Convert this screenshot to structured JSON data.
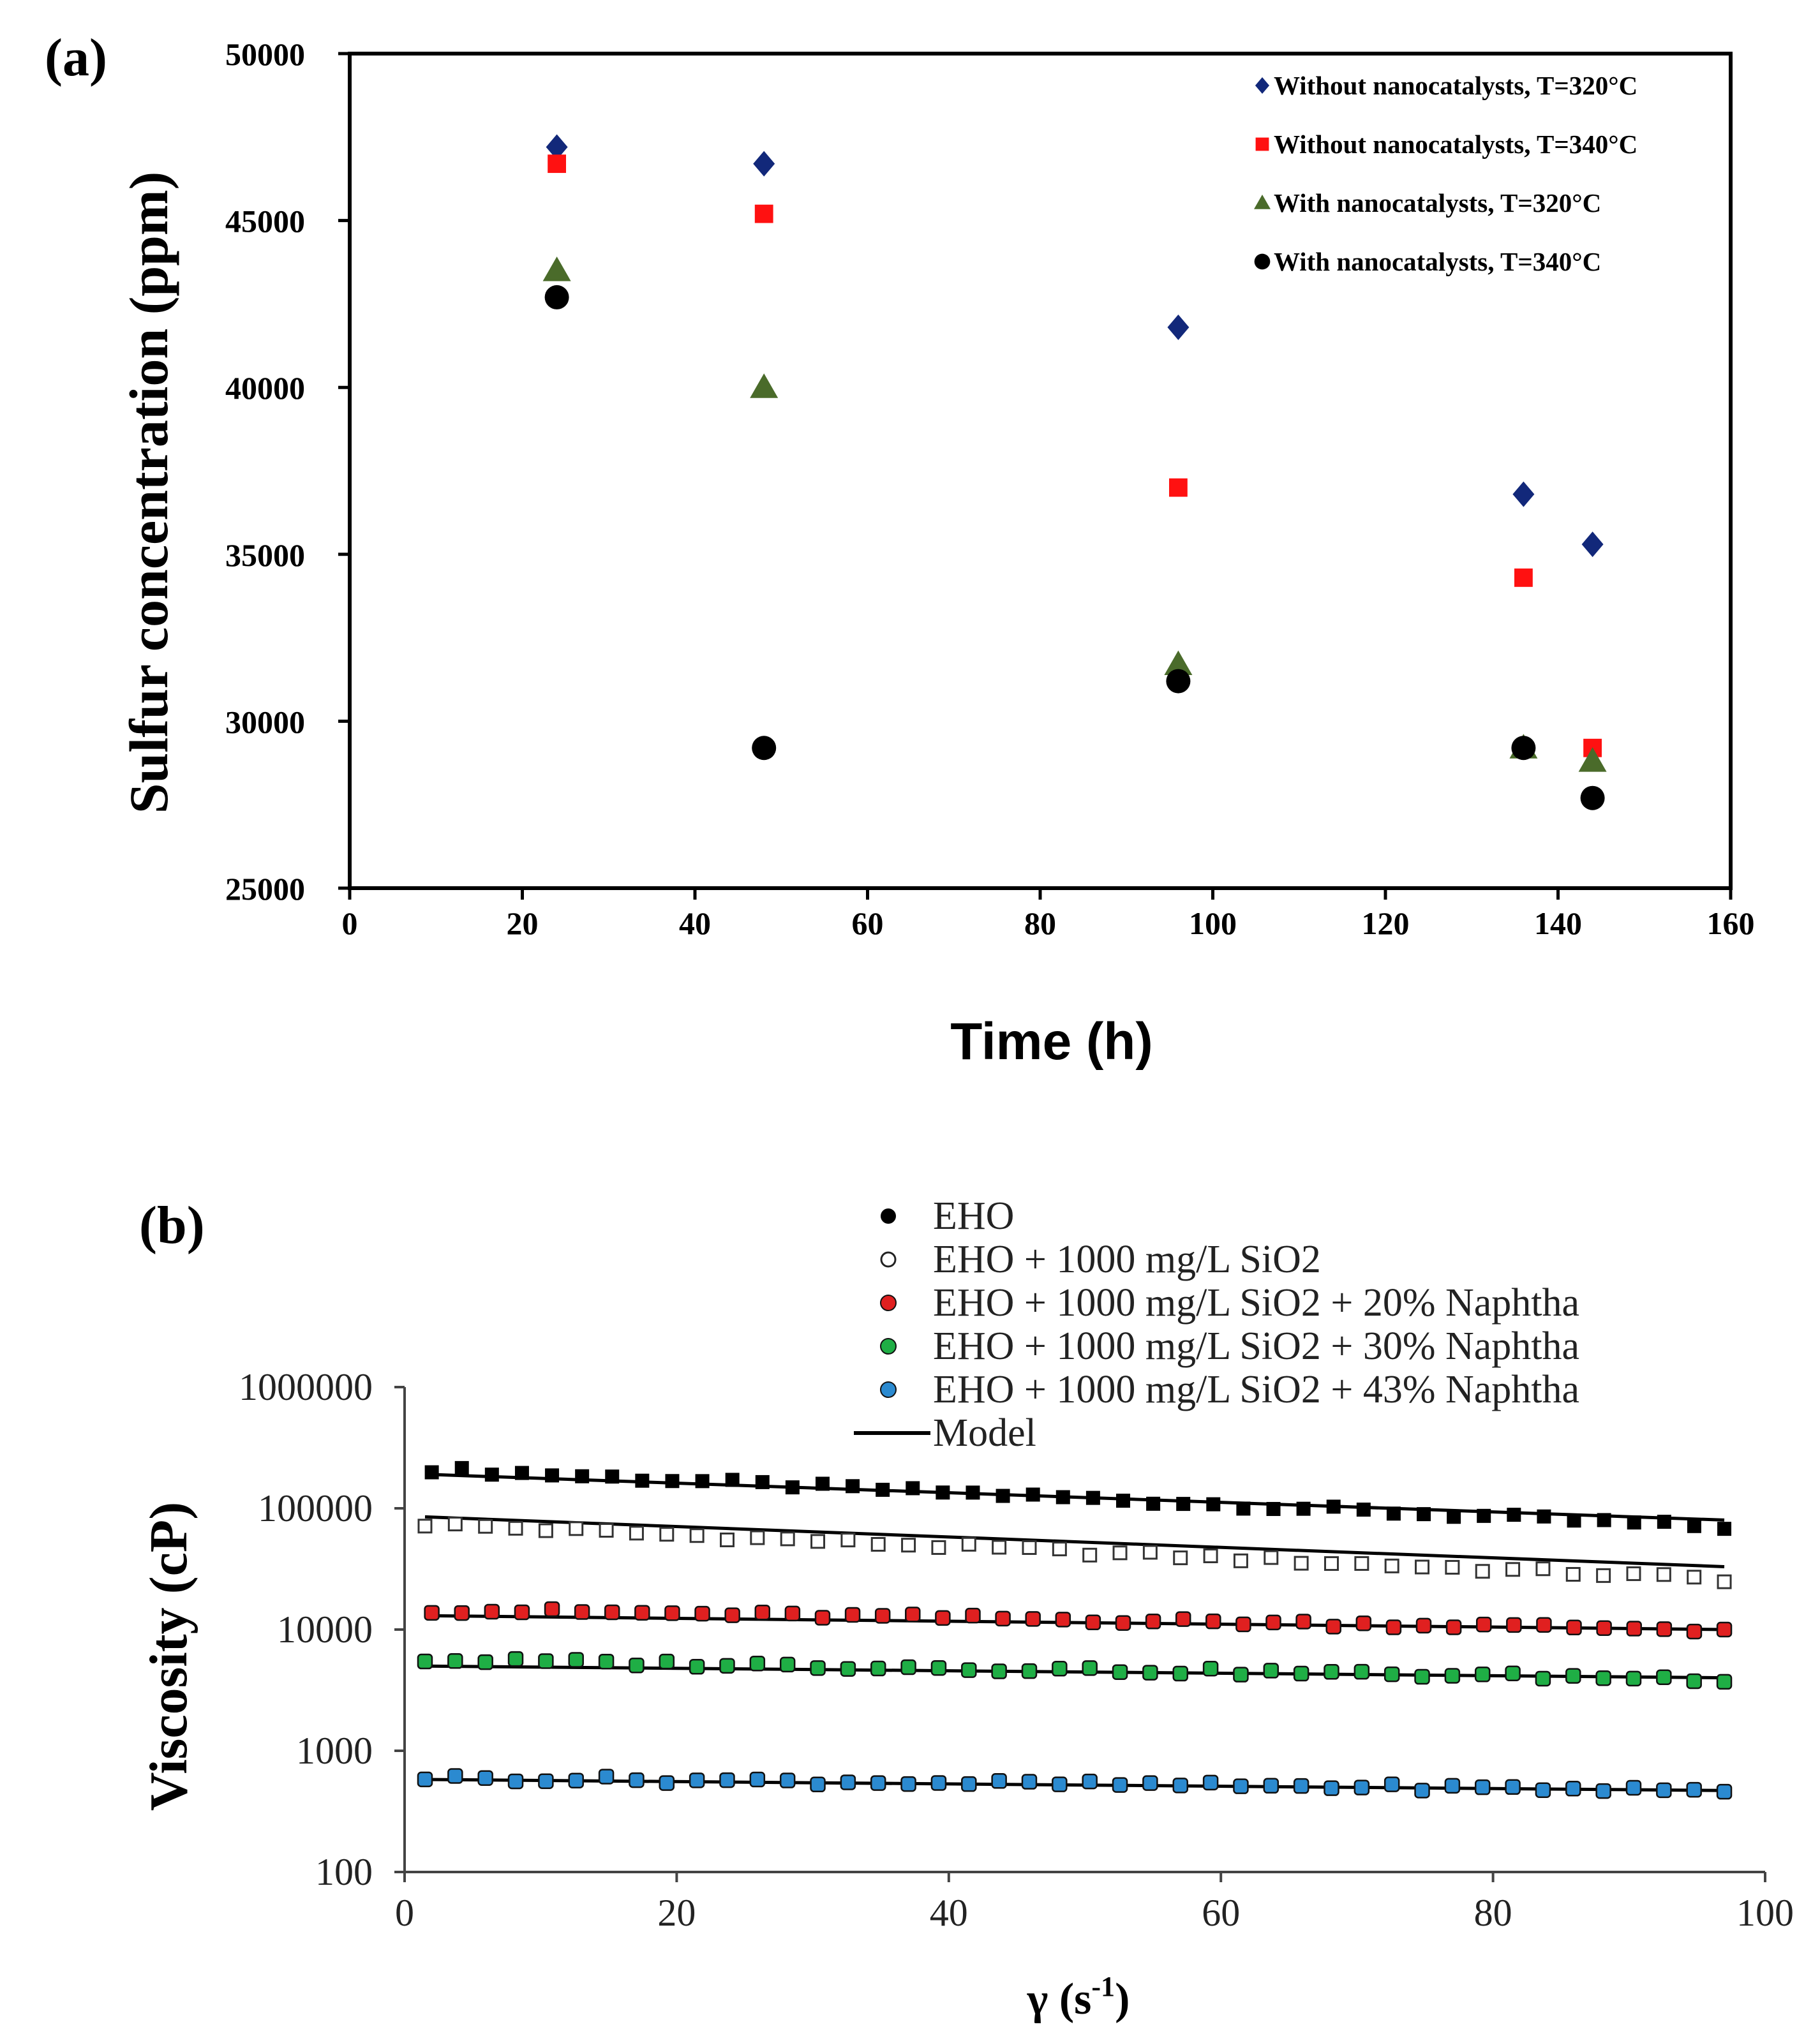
{
  "chart_data": [
    {
      "panel": "(a)",
      "type": "scatter",
      "xlabel": "Time (h)",
      "ylabel": "Sulfur concentration (ppm)",
      "xlim": [
        0,
        160
      ],
      "ylim": [
        25000,
        50000
      ],
      "xticks": [
        0,
        20,
        40,
        60,
        80,
        100,
        120,
        140,
        160
      ],
      "yticks": [
        25000,
        30000,
        35000,
        40000,
        45000,
        50000
      ],
      "legend_position": "top-right",
      "series": [
        {
          "name": "Without nanocatalysts, T=320°C",
          "marker": "diamond",
          "color": "#12287a",
          "x": [
            24,
            48,
            96,
            136,
            144
          ],
          "y": [
            47200,
            46700,
            41800,
            36800,
            35300
          ]
        },
        {
          "name": "Without nanocatalysts, T=340°C",
          "marker": "square",
          "color": "#ff1111",
          "x": [
            24,
            48,
            96,
            136,
            144
          ],
          "y": [
            46700,
            45200,
            37000,
            34300,
            29200
          ]
        },
        {
          "name": "With nanocatalysts, T=320°C",
          "marker": "triangle",
          "color": "#4a6b2a",
          "x": [
            24,
            48,
            96,
            136,
            144
          ],
          "y": [
            43500,
            40000,
            31700,
            29200,
            28800
          ]
        },
        {
          "name": "With nanocatalysts, T=340°C",
          "marker": "circle",
          "color": "#000000",
          "x": [
            24,
            48,
            96,
            136,
            144
          ],
          "y": [
            42700,
            29200,
            31200,
            29200,
            27700
          ]
        }
      ]
    },
    {
      "panel": "(b)",
      "type": "scatter",
      "yscale": "log",
      "xlabel": "γ (s",
      "xlabel_sup": "-1",
      "xlabel_end": ")",
      "ylabel": "Viscosity (cP)",
      "xlim": [
        0,
        100
      ],
      "ylim": [
        100,
        1000000
      ],
      "xticks": [
        0,
        20,
        40,
        60,
        80,
        100
      ],
      "yticks": [
        100,
        1000,
        10000,
        100000,
        1000000
      ],
      "legend_position": "top",
      "series": [
        {
          "name": "EHO",
          "marker": "filled-square",
          "color": "#000000",
          "x_start": 2,
          "x_end": 97,
          "y_start": 210000,
          "y_end": 70000,
          "model": [
            190000,
            80000
          ]
        },
        {
          "name": "EHO + 1000 mg/L SiO2",
          "marker": "open-square",
          "color": "#ffffff",
          "x_start": 1.5,
          "x_end": 97,
          "y_start": 74000,
          "y_end": 26000,
          "model": [
            85000,
            33000
          ]
        },
        {
          "name": "EHO + 1000 mg/L SiO2 + 20% Naphtha",
          "marker": "circle",
          "color": "#e02020",
          "x_start": 2,
          "x_end": 97,
          "y_start": 14500,
          "y_end": 10000,
          "model": [
            13000,
            10000
          ]
        },
        {
          "name": "EHO + 1000 mg/L SiO2 + 30% Naphtha",
          "marker": "circle",
          "color": "#1fae45",
          "x_start": 1.5,
          "x_end": 97,
          "y_start": 5600,
          "y_end": 3900,
          "model": [
            5000,
            4000
          ]
        },
        {
          "name": "EHO + 1000 mg/L SiO2 + 43% Naphtha",
          "marker": "circle",
          "color": "#2b8ad0",
          "x_start": 1.5,
          "x_end": 97,
          "y_start": 600,
          "y_end": 470,
          "model": [
            580,
            470
          ]
        }
      ],
      "model_label": "Model"
    }
  ]
}
